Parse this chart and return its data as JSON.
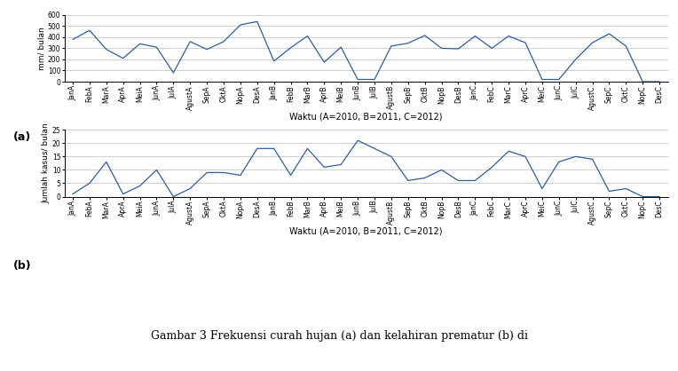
{
  "labels": [
    "JanA",
    "FebA",
    "MarA",
    "AprA",
    "MeiA",
    "JunA",
    "JulA",
    "AgustA",
    "SepA",
    "OktA",
    "NopA",
    "DesA",
    "JanB",
    "FebB",
    "MarB",
    "AprB",
    "MeiB",
    "JunB",
    "JulB",
    "AgustB",
    "SepB",
    "OktB",
    "NopB",
    "DesB",
    "JanC",
    "FebC",
    "MarC",
    "AprC",
    "MeiC",
    "JunC",
    "JulC",
    "AgustC",
    "SepC",
    "OktC",
    "NopC",
    "DesC"
  ],
  "rain": [
    380,
    460,
    290,
    210,
    340,
    310,
    80,
    360,
    290,
    360,
    510,
    540,
    185,
    305,
    410,
    175,
    310,
    20,
    20,
    320,
    345,
    415,
    300,
    295,
    410,
    300,
    410,
    350,
    20,
    20,
    200,
    350,
    430,
    320,
    0,
    0
  ],
  "premature": [
    1,
    5,
    13,
    1,
    4,
    10,
    0,
    3,
    9,
    9,
    8,
    18,
    18,
    8,
    18,
    11,
    12,
    21,
    18,
    15,
    6,
    7,
    10,
    6,
    6,
    11,
    17,
    15,
    3,
    13,
    15,
    14,
    2,
    3,
    0,
    0
  ],
  "rain_ylim": [
    0,
    600
  ],
  "rain_yticks": [
    0,
    100,
    200,
    300,
    400,
    500,
    600
  ],
  "rain_ylabel": "mm/ bulan",
  "premature_ylim": [
    0,
    25
  ],
  "premature_yticks": [
    0,
    5,
    10,
    15,
    20,
    25
  ],
  "premature_ylabel": "Jumlah kasus/ bulan",
  "xlabel": "Waktu (A=2010, B=2011, C=2012)",
  "line_color": "#2E5D9C",
  "label_a": "(a)",
  "label_b": "(b)",
  "tick_fontsize": 5.5,
  "ylabel_fontsize": 6.5,
  "xlabel_fontsize": 7.0,
  "label_fontsize": 9,
  "caption": "Gambar 3 Frekuensi curah hujan (a) dan kelahiran prematur (b) di",
  "caption_fontsize": 9,
  "background_color": "#ffffff",
  "grid_color": "#bbbbbb"
}
